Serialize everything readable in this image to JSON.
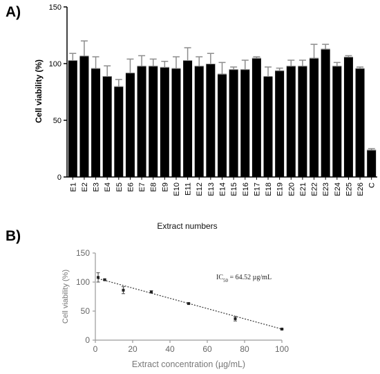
{
  "chart_data": [
    {
      "panel_label": "A)",
      "type": "bar",
      "ylabel": "Cell viability (%)",
      "xlabel": "Extract numbers",
      "ylim": [
        0,
        150
      ],
      "yticks": [
        0,
        50,
        100,
        150
      ],
      "categories": [
        "E1",
        "E2",
        "E3",
        "E4",
        "E5",
        "E6",
        "E7",
        "E8",
        "E9",
        "E10",
        "E11",
        "E12",
        "E13",
        "E14",
        "E15",
        "E16",
        "E17",
        "E18",
        "E19",
        "E20",
        "E21",
        "E22",
        "E23",
        "E24",
        "E25",
        "E26",
        "C"
      ],
      "values": [
        103,
        107,
        96,
        89,
        80,
        92,
        98,
        98,
        97,
        96,
        103,
        98,
        100,
        91,
        95,
        95,
        105,
        89,
        94,
        98,
        98,
        105,
        113,
        98,
        106,
        96,
        24
      ],
      "errors": [
        6,
        13,
        10,
        9,
        6,
        12,
        9,
        6,
        5,
        10,
        11,
        8,
        9,
        10,
        2,
        8,
        1,
        8,
        2,
        5,
        5,
        12,
        4,
        3,
        1,
        1,
        1
      ],
      "grid": false,
      "bar_color": "#000000",
      "error_color": "#8c8c8c"
    },
    {
      "panel_label": "B)",
      "type": "scatter",
      "xlabel": "Extract concentration (µg/mL)",
      "ylabel": "Cell viability (%)",
      "xlim": [
        0,
        100
      ],
      "ylim": [
        0,
        150
      ],
      "xticks": [
        0,
        20,
        40,
        60,
        80,
        100
      ],
      "yticks": [
        0,
        50,
        100,
        150
      ],
      "x": [
        1.5,
        5,
        15,
        30,
        50,
        75,
        100
      ],
      "y": [
        108,
        104,
        86,
        83,
        63,
        37,
        19
      ],
      "errors": [
        8,
        1,
        6,
        2,
        1,
        4,
        1
      ],
      "trendline": {
        "x": [
          1.5,
          100
        ],
        "y": [
          106,
          19
        ],
        "style": "dotted"
      },
      "annotation": {
        "prefix": "IC",
        "subscript": "50",
        "suffix": " = 64.52 µg/mL"
      },
      "grid": false,
      "axis_color": "#9a9a9a",
      "point_color": "#222222"
    }
  ]
}
